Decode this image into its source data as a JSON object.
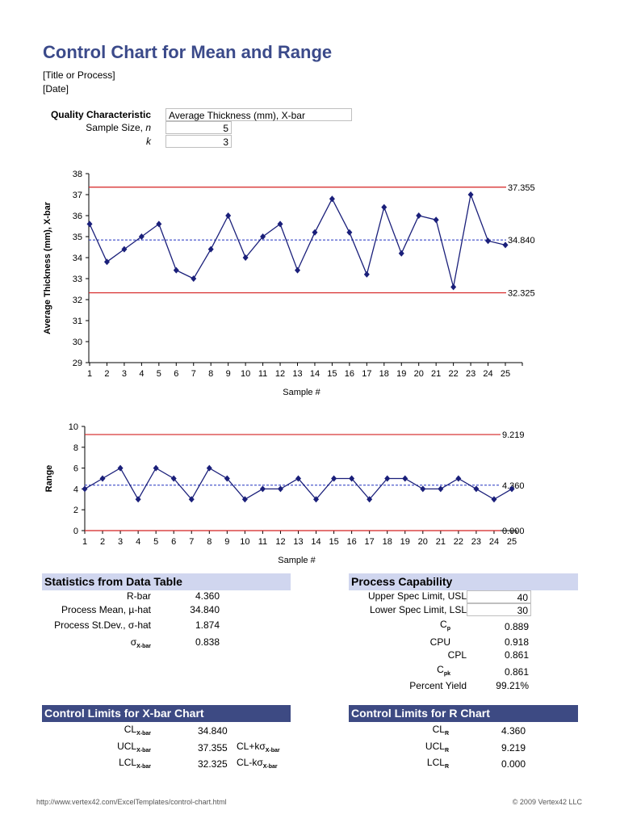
{
  "header": {
    "title": "Control Chart for Mean and Range",
    "subtitle": "[Title or Process]",
    "date": "[Date]"
  },
  "inputs": {
    "quality_label": "Quality Characteristic",
    "quality_value": "Average Thickness (mm), X-bar",
    "sample_size_label": "Sample Size, ",
    "sample_size_var": "n",
    "sample_size_value": "5",
    "k_label": "k",
    "k_value": "3"
  },
  "chart_data": [
    {
      "type": "line",
      "title": "",
      "ylabel": "Average Thickness (mm), X-bar",
      "xlabel": "Sample #",
      "ylim": [
        29,
        38
      ],
      "yticks": [
        "29",
        "30",
        "31",
        "32",
        "33",
        "34",
        "35",
        "36",
        "37",
        "38"
      ],
      "x": [
        "1",
        "2",
        "3",
        "4",
        "5",
        "6",
        "7",
        "8",
        "9",
        "10",
        "11",
        "12",
        "13",
        "14",
        "15",
        "16",
        "17",
        "18",
        "19",
        "20",
        "21",
        "22",
        "23",
        "24",
        "25"
      ],
      "values": [
        35.6,
        33.8,
        34.4,
        35.0,
        35.6,
        33.4,
        33.0,
        34.4,
        36.0,
        34.0,
        35.0,
        35.6,
        33.4,
        35.2,
        36.8,
        35.2,
        33.2,
        36.4,
        34.2,
        36.0,
        35.8,
        32.6,
        37.0,
        34.8,
        34.6
      ],
      "lines": {
        "ucl": 37.355,
        "cl": 34.84,
        "lcl": 32.325
      },
      "line_labels": {
        "ucl": "37.355",
        "cl": "34.840",
        "lcl": "32.325"
      }
    },
    {
      "type": "line",
      "title": "",
      "ylabel": "Range",
      "xlabel": "Sample #",
      "ylim": [
        0,
        10
      ],
      "yticks": [
        "0",
        "2",
        "4",
        "6",
        "8",
        "10"
      ],
      "x": [
        "1",
        "2",
        "3",
        "4",
        "5",
        "6",
        "7",
        "8",
        "9",
        "10",
        "11",
        "12",
        "13",
        "14",
        "15",
        "16",
        "17",
        "18",
        "19",
        "20",
        "21",
        "22",
        "23",
        "24",
        "25"
      ],
      "values": [
        4,
        5,
        6,
        3,
        6,
        5,
        3,
        6,
        5,
        3,
        4,
        4,
        5,
        3,
        5,
        5,
        3,
        5,
        5,
        4,
        4,
        5,
        4,
        3,
        4
      ],
      "lines": {
        "ucl": 9.219,
        "cl": 4.36,
        "lcl": 0.0
      },
      "line_labels": {
        "ucl": "9.219",
        "cl": "4.360",
        "lcl": "0.000"
      }
    }
  ],
  "colors": {
    "series": "#1a1f7a",
    "limit": "#d42020",
    "center": "#2030c0"
  },
  "stats": {
    "title": "Statistics from Data Table",
    "rbar_label": "R-bar",
    "rbar": "4.360",
    "mean_label": "Process Mean, µ-hat",
    "mean": "34.840",
    "sd_label": "Process St.Dev., σ-hat",
    "sd": "1.874",
    "sigma_sym": "σ",
    "sigma_sub": "X-bar",
    "sigma": "0.838"
  },
  "capability": {
    "title": "Process Capability",
    "usl_label": "Upper Spec Limit, USL",
    "usl": "40",
    "lsl_label": "Lower Spec Limit, LSL",
    "lsl": "30",
    "cp_sym": "C",
    "cp_sub": "p",
    "cp": "0.889",
    "cpu_label": "CPU",
    "cpu": "0.918",
    "cpl_label": "CPL",
    "cpl": "0.861",
    "cpk_sym": "C",
    "cpk_sub": "pk",
    "cpk": "0.861",
    "yield_label": "Percent Yield",
    "yield": "99.21%"
  },
  "xbar_limits": {
    "title": "Control Limits for X-bar Chart",
    "sub": "X-bar",
    "cl_label": "CL",
    "cl": "34.840",
    "ucl_label": "UCL",
    "ucl": "37.355",
    "ucl_formula": "CL+kσ",
    "lcl_label": "LCL",
    "lcl": "32.325",
    "lcl_formula": "CL-kσ"
  },
  "r_limits": {
    "title": "Control Limits for R Chart",
    "sub": "R",
    "cl_label": "CL",
    "cl": "4.360",
    "ucl_label": "UCL",
    "ucl": "9.219",
    "lcl_label": "LCL",
    "lcl": "0.000"
  },
  "footer": {
    "url": "http://www.vertex42.com/ExcelTemplates/control-chart.html",
    "copyright": "© 2009 Vertex42 LLC"
  }
}
